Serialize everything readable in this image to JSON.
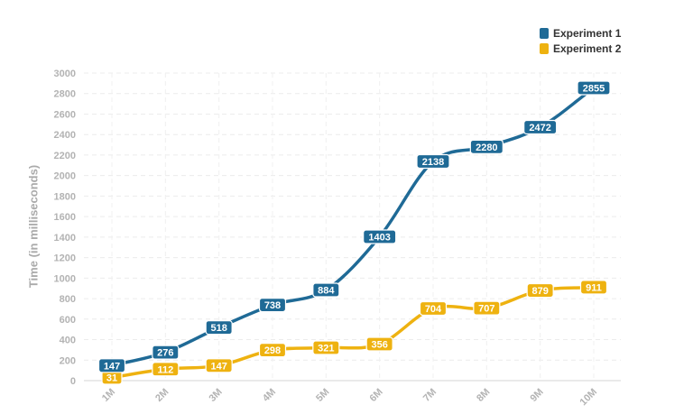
{
  "chart_data": {
    "type": "line",
    "x": [
      "1M",
      "2M",
      "3M",
      "4M",
      "5M",
      "6M",
      "7M",
      "8M",
      "9M",
      "10M"
    ],
    "ylabel": "Time (in milliseconds)",
    "ylim": [
      0,
      3000
    ],
    "yticks": [
      0,
      200,
      400,
      600,
      800,
      1000,
      1200,
      1400,
      1600,
      1800,
      2000,
      2200,
      2400,
      2600,
      2800,
      3000
    ],
    "grid": true,
    "legend_position": "top-right",
    "series": [
      {
        "name": "Experiment 1",
        "color": "#1f6a96",
        "values": [
          147,
          276,
          518,
          738,
          884,
          1403,
          2138,
          2280,
          2472,
          2855
        ]
      },
      {
        "name": "Experiment 2",
        "color": "#eeb210",
        "values": [
          31,
          112,
          147,
          298,
          321,
          356,
          704,
          707,
          879,
          911
        ]
      }
    ]
  }
}
